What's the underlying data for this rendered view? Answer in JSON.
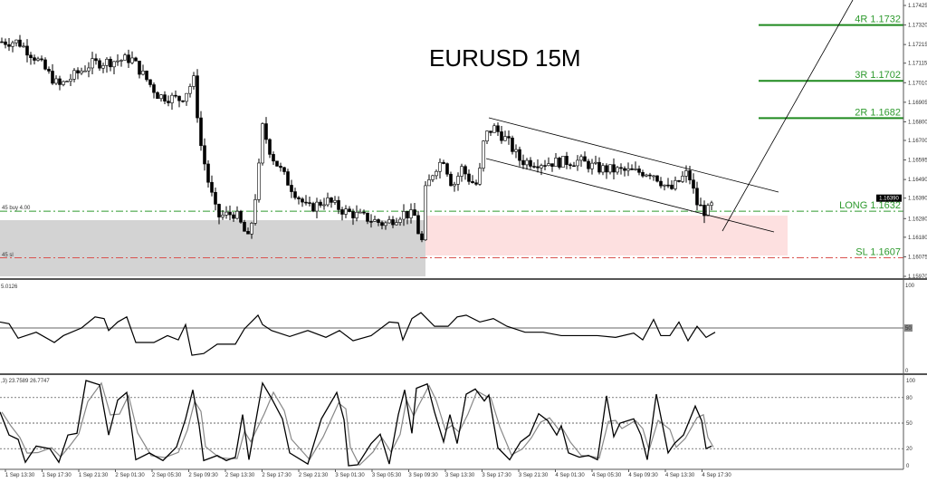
{
  "chart_data": [
    {
      "type": "candlestick",
      "title": "EURUSD 15M",
      "ylim": [
        1.1597,
        1.17425
      ],
      "y_ticks": [
        "1.17425",
        "1.17320",
        "1.17215",
        "1.17115",
        "1.17010",
        "1.16905",
        "1.16800",
        "1.16700",
        "1.16595",
        "1.16490",
        "1.16390",
        "1.16280",
        "1.16180",
        "1.16075",
        "1.15970"
      ],
      "current_price": "1.16390",
      "x_ticks": [
        "1 Sep 13:30",
        "1 Sep 17:30",
        "1 Sep 21:30",
        "2 Sep 01:30",
        "2 Sep 05:30",
        "2 Sep 09:30",
        "2 Sep 13:30",
        "2 Sep 17:30",
        "2 Sep 21:30",
        "3 Sep 01:30",
        "3 Sep 05:30",
        "3 Sep 09:30",
        "3 Sep 13:30",
        "3 Sep 17:30",
        "3 Sep 21:30",
        "4 Sep 01:30",
        "4 Sep 05:30",
        "4 Sep 09:30",
        "4 Sep 13:30",
        "4 Sep 17:30"
      ],
      "close_path": [
        [
          0,
          1.1723
        ],
        [
          20,
          1.1723
        ],
        [
          40,
          1.1714
        ],
        [
          65,
          1.1699
        ],
        [
          100,
          1.1711
        ],
        [
          145,
          1.1714
        ],
        [
          160,
          1.1704
        ],
        [
          175,
          1.1694
        ],
        [
          200,
          1.1692
        ],
        [
          215,
          1.1703
        ],
        [
          220,
          1.1672
        ],
        [
          230,
          1.1648
        ],
        [
          240,
          1.1629
        ],
        [
          260,
          1.1631
        ],
        [
          275,
          1.1616
        ],
        [
          285,
          1.165
        ],
        [
          290,
          1.1677
        ],
        [
          300,
          1.1662
        ],
        [
          320,
          1.1646
        ],
        [
          340,
          1.1633
        ],
        [
          360,
          1.1638
        ],
        [
          380,
          1.1632
        ],
        [
          400,
          1.1629
        ],
        [
          425,
          1.1625
        ],
        [
          445,
          1.1631
        ],
        [
          460,
          1.1629
        ],
        [
          465,
          1.1609
        ],
        [
          470,
          1.1643
        ],
        [
          480,
          1.1655
        ],
        [
          490,
          1.166
        ],
        [
          500,
          1.1645
        ],
        [
          510,
          1.1655
        ],
        [
          520,
          1.1648
        ],
        [
          528,
          1.1646
        ],
        [
          535,
          1.1672
        ],
        [
          545,
          1.1677
        ],
        [
          560,
          1.167
        ],
        [
          575,
          1.1659
        ],
        [
          600,
          1.1658
        ],
        [
          640,
          1.1659
        ],
        [
          660,
          1.1655
        ],
        [
          700,
          1.1653
        ],
        [
          720,
          1.1653
        ],
        [
          740,
          1.1643
        ],
        [
          760,
          1.1653
        ],
        [
          770,
          1.1636
        ],
        [
          780,
          1.1631
        ],
        [
          788,
          1.1636
        ]
      ],
      "levels": [
        {
          "label": "4R 1.1732",
          "price": 1.1732,
          "color": "#1f8a1f"
        },
        {
          "label": "3R 1.1702",
          "price": 1.1702,
          "color": "#1f8a1f"
        },
        {
          "label": "2R 1.1682",
          "price": 1.1682,
          "color": "#1f8a1f"
        },
        {
          "label": "LONG 1.1632",
          "price": 1.1632,
          "color": "#2e9a2e"
        },
        {
          "label": "SL 1.1607",
          "price": 1.1607,
          "color": "#d9534f"
        }
      ],
      "order_labels": {
        "buy": "45 buy 4.00",
        "sl": "45 sl"
      },
      "zones": {
        "gray": "#d3d3d3",
        "pink": "#fde0e0"
      }
    },
    {
      "type": "line",
      "indicator_label": "5.0126",
      "ylim": [
        0,
        100
      ],
      "y_ticks": [
        "100",
        "50",
        "0"
      ],
      "level": 50,
      "points": [
        [
          0,
          57
        ],
        [
          10,
          55
        ],
        [
          20,
          38
        ],
        [
          40,
          45
        ],
        [
          60,
          33
        ],
        [
          70,
          41
        ],
        [
          90,
          50
        ],
        [
          105,
          63
        ],
        [
          115,
          61
        ],
        [
          120,
          47
        ],
        [
          130,
          57
        ],
        [
          140,
          63
        ],
        [
          150,
          33
        ],
        [
          170,
          33
        ],
        [
          185,
          41
        ],
        [
          197,
          36
        ],
        [
          205,
          54
        ],
        [
          212,
          18
        ],
        [
          225,
          20
        ],
        [
          240,
          31
        ],
        [
          260,
          31
        ],
        [
          270,
          49
        ],
        [
          285,
          65
        ],
        [
          290,
          54
        ],
        [
          300,
          47
        ],
        [
          320,
          40
        ],
        [
          340,
          47
        ],
        [
          360,
          39
        ],
        [
          375,
          47
        ],
        [
          390,
          35
        ],
        [
          410,
          41
        ],
        [
          430,
          57
        ],
        [
          440,
          56
        ],
        [
          445,
          36
        ],
        [
          455,
          61
        ],
        [
          465,
          68
        ],
        [
          480,
          52
        ],
        [
          495,
          52
        ],
        [
          505,
          63
        ],
        [
          515,
          65
        ],
        [
          530,
          57
        ],
        [
          545,
          61
        ],
        [
          560,
          52
        ],
        [
          580,
          45
        ],
        [
          600,
          45
        ],
        [
          620,
          41
        ],
        [
          640,
          41
        ],
        [
          660,
          41
        ],
        [
          680,
          39
        ],
        [
          700,
          44
        ],
        [
          710,
          36
        ],
        [
          722,
          60
        ],
        [
          730,
          41
        ],
        [
          740,
          41
        ],
        [
          750,
          57
        ],
        [
          760,
          35
        ],
        [
          770,
          52
        ],
        [
          780,
          39
        ],
        [
          790,
          45
        ]
      ]
    },
    {
      "type": "line",
      "indicator_label": ",3) 23.7589 26.7747",
      "ylim": [
        0,
        100
      ],
      "y_ticks": [
        "100",
        "80",
        "50",
        "20",
        "0"
      ],
      "levels": [
        80,
        50,
        20
      ],
      "points": [
        [
          0,
          63
        ],
        [
          10,
          36
        ],
        [
          20,
          31
        ],
        [
          28,
          4
        ],
        [
          40,
          23
        ],
        [
          55,
          20
        ],
        [
          65,
          4
        ],
        [
          75,
          36
        ],
        [
          85,
          38
        ],
        [
          95,
          100
        ],
        [
          110,
          95
        ],
        [
          120,
          36
        ],
        [
          130,
          77
        ],
        [
          140,
          86
        ],
        [
          150,
          7
        ],
        [
          165,
          15
        ],
        [
          180,
          6
        ],
        [
          195,
          22
        ],
        [
          205,
          55
        ],
        [
          213,
          89
        ],
        [
          220,
          47
        ],
        [
          225,
          6
        ],
        [
          240,
          12
        ],
        [
          250,
          6
        ],
        [
          260,
          10
        ],
        [
          268,
          60
        ],
        [
          275,
          7
        ],
        [
          290,
          97
        ],
        [
          300,
          79
        ],
        [
          312,
          55
        ],
        [
          320,
          15
        ],
        [
          340,
          2
        ],
        [
          355,
          55
        ],
        [
          372,
          86
        ],
        [
          380,
          54
        ],
        [
          385,
          0
        ],
        [
          395,
          1
        ],
        [
          410,
          26
        ],
        [
          420,
          37
        ],
        [
          430,
          2
        ],
        [
          440,
          60
        ],
        [
          447,
          89
        ],
        [
          455,
          38
        ],
        [
          460,
          91
        ],
        [
          472,
          96
        ],
        [
          480,
          63
        ],
        [
          490,
          28
        ],
        [
          497,
          60
        ],
        [
          505,
          26
        ],
        [
          515,
          84
        ],
        [
          525,
          90
        ],
        [
          535,
          76
        ],
        [
          540,
          83
        ],
        [
          550,
          21
        ],
        [
          563,
          7
        ],
        [
          575,
          28
        ],
        [
          585,
          36
        ],
        [
          595,
          61
        ],
        [
          605,
          53
        ],
        [
          615,
          36
        ],
        [
          620,
          47
        ],
        [
          628,
          15
        ],
        [
          640,
          10
        ],
        [
          650,
          12
        ],
        [
          660,
          7
        ],
        [
          670,
          82
        ],
        [
          678,
          34
        ],
        [
          685,
          50
        ],
        [
          700,
          55
        ],
        [
          708,
          36
        ],
        [
          715,
          7
        ],
        [
          725,
          84
        ],
        [
          738,
          15
        ],
        [
          745,
          26
        ],
        [
          755,
          36
        ],
        [
          768,
          70
        ],
        [
          775,
          53
        ],
        [
          780,
          20
        ],
        [
          786,
          23
        ]
      ]
    }
  ]
}
